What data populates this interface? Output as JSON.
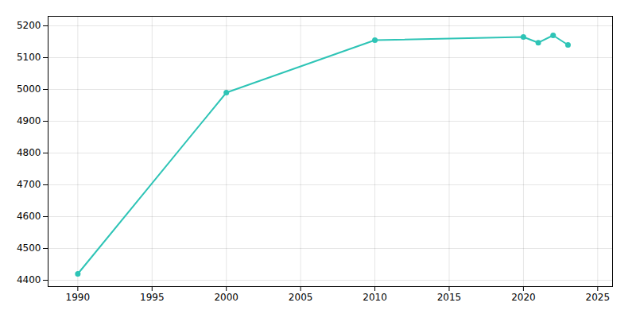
{
  "chart_data": {
    "type": "line",
    "x": [
      1990,
      2000,
      2010,
      2020,
      2021,
      2022,
      2023
    ],
    "values": [
      4420,
      4990,
      5155,
      5165,
      5147,
      5170,
      5140
    ],
    "color": "#2EC4B6",
    "marker": "circle",
    "xlim": [
      1988,
      2026
    ],
    "ylim": [
      4380,
      5230
    ],
    "xticks": [
      1990,
      1995,
      2000,
      2005,
      2010,
      2015,
      2020,
      2025
    ],
    "yticks": [
      4400,
      4500,
      4600,
      4700,
      4800,
      4900,
      5000,
      5100,
      5200
    ],
    "grid": true
  }
}
